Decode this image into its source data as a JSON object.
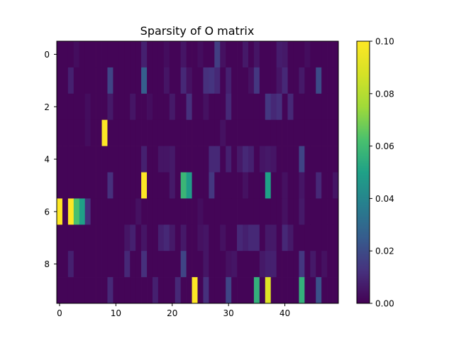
{
  "chart_data": {
    "type": "heatmap",
    "title": "Sparsity of O matrix",
    "xlabel": "",
    "ylabel": "",
    "n_rows": 10,
    "n_cols": 50,
    "x_ticks": [
      0,
      10,
      20,
      30,
      40
    ],
    "y_ticks": [
      0,
      2,
      4,
      6,
      8
    ],
    "colormap": "viridis",
    "colorbar": {
      "vmin": 0.0,
      "vmax": 0.1,
      "ticks": [
        "0.00",
        "0.02",
        "0.04",
        "0.06",
        "0.08",
        "0.10"
      ],
      "tick_values": [
        0.0,
        0.02,
        0.04,
        0.06,
        0.08,
        0.1
      ]
    },
    "background_value": 0.001,
    "cells": [
      [
        0,
        3,
        0.003
      ],
      [
        0,
        15,
        0.008
      ],
      [
        0,
        19,
        0.003
      ],
      [
        0,
        22,
        0.005
      ],
      [
        0,
        25,
        0.003
      ],
      [
        0,
        28,
        0.016
      ],
      [
        0,
        29,
        0.004
      ],
      [
        0,
        33,
        0.006
      ],
      [
        0,
        35,
        0.005
      ],
      [
        0,
        39,
        0.007
      ],
      [
        0,
        40,
        0.006
      ],
      [
        0,
        44,
        0.003
      ],
      [
        1,
        2,
        0.008
      ],
      [
        1,
        9,
        0.018
      ],
      [
        1,
        15,
        0.026
      ],
      [
        1,
        19,
        0.005
      ],
      [
        1,
        22,
        0.01
      ],
      [
        1,
        23,
        0.004
      ],
      [
        1,
        26,
        0.012
      ],
      [
        1,
        27,
        0.013
      ],
      [
        1,
        28,
        0.01
      ],
      [
        1,
        30,
        0.008
      ],
      [
        1,
        34,
        0.004
      ],
      [
        1,
        35,
        0.014
      ],
      [
        1,
        39,
        0.005
      ],
      [
        1,
        40,
        0.01
      ],
      [
        1,
        43,
        0.006
      ],
      [
        1,
        46,
        0.02
      ],
      [
        2,
        5,
        0.003
      ],
      [
        2,
        9,
        0.006
      ],
      [
        2,
        13,
        0.005
      ],
      [
        2,
        16,
        0.003
      ],
      [
        2,
        20,
        0.006
      ],
      [
        2,
        23,
        0.012
      ],
      [
        2,
        26,
        0.004
      ],
      [
        2,
        30,
        0.01
      ],
      [
        2,
        37,
        0.014
      ],
      [
        2,
        38,
        0.01
      ],
      [
        2,
        39,
        0.012
      ],
      [
        2,
        41,
        0.01
      ],
      [
        3,
        5,
        0.003
      ],
      [
        3,
        8,
        0.1
      ],
      [
        3,
        29,
        0.004
      ],
      [
        4,
        15,
        0.008
      ],
      [
        4,
        18,
        0.005
      ],
      [
        4,
        19,
        0.005
      ],
      [
        4,
        20,
        0.006
      ],
      [
        4,
        27,
        0.01
      ],
      [
        4,
        28,
        0.01
      ],
      [
        4,
        30,
        0.008
      ],
      [
        4,
        32,
        0.006
      ],
      [
        4,
        33,
        0.01
      ],
      [
        4,
        34,
        0.008
      ],
      [
        4,
        36,
        0.005
      ],
      [
        4,
        37,
        0.006
      ],
      [
        4,
        38,
        0.005
      ],
      [
        4,
        43,
        0.018
      ],
      [
        5,
        9,
        0.012
      ],
      [
        5,
        15,
        0.1
      ],
      [
        5,
        20,
        0.006
      ],
      [
        5,
        22,
        0.058
      ],
      [
        5,
        23,
        0.048
      ],
      [
        5,
        27,
        0.014
      ],
      [
        5,
        33,
        0.004
      ],
      [
        5,
        37,
        0.05
      ],
      [
        5,
        40,
        0.004
      ],
      [
        5,
        43,
        0.005
      ],
      [
        5,
        46,
        0.01
      ],
      [
        5,
        49,
        0.005
      ],
      [
        6,
        0,
        0.1
      ],
      [
        6,
        2,
        0.1
      ],
      [
        6,
        3,
        0.062
      ],
      [
        6,
        4,
        0.05
      ],
      [
        6,
        5,
        0.012
      ],
      [
        6,
        14,
        0.004
      ],
      [
        6,
        25,
        0.003
      ],
      [
        6,
        40,
        0.004
      ],
      [
        6,
        43,
        0.006
      ],
      [
        7,
        12,
        0.005
      ],
      [
        7,
        13,
        0.008
      ],
      [
        7,
        15,
        0.005
      ],
      [
        7,
        18,
        0.008
      ],
      [
        7,
        19,
        0.01
      ],
      [
        7,
        20,
        0.006
      ],
      [
        7,
        22,
        0.006
      ],
      [
        7,
        25,
        0.004
      ],
      [
        7,
        26,
        0.005
      ],
      [
        7,
        29,
        0.004
      ],
      [
        7,
        32,
        0.01
      ],
      [
        7,
        33,
        0.008
      ],
      [
        7,
        34,
        0.01
      ],
      [
        7,
        35,
        0.01
      ],
      [
        7,
        37,
        0.006
      ],
      [
        7,
        38,
        0.006
      ],
      [
        7,
        40,
        0.01
      ],
      [
        7,
        41,
        0.006
      ],
      [
        8,
        2,
        0.008
      ],
      [
        8,
        12,
        0.01
      ],
      [
        8,
        15,
        0.012
      ],
      [
        8,
        22,
        0.018
      ],
      [
        8,
        26,
        0.005
      ],
      [
        8,
        30,
        0.004
      ],
      [
        8,
        31,
        0.005
      ],
      [
        8,
        36,
        0.006
      ],
      [
        8,
        37,
        0.008
      ],
      [
        8,
        38,
        0.008
      ],
      [
        8,
        43,
        0.014
      ],
      [
        8,
        45,
        0.006
      ],
      [
        8,
        47,
        0.004
      ],
      [
        9,
        9,
        0.01
      ],
      [
        9,
        17,
        0.008
      ],
      [
        9,
        21,
        0.01
      ],
      [
        9,
        24,
        0.1
      ],
      [
        9,
        26,
        0.012
      ],
      [
        9,
        30,
        0.018
      ],
      [
        9,
        35,
        0.056
      ],
      [
        9,
        37,
        0.09
      ],
      [
        9,
        43,
        0.056
      ],
      [
        9,
        46,
        0.022
      ]
    ]
  }
}
